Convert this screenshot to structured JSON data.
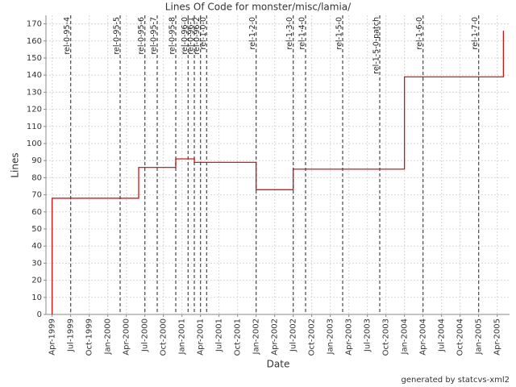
{
  "chart_data": {
    "type": "line",
    "title": "Lines Of Code for monster/misc/lamia/",
    "x_label": "Date",
    "y_label": "Lines",
    "footer": "generated by statcvs-xml2",
    "step": true,
    "grid": true,
    "x": [
      "Apr-1999",
      "Jun-2000",
      "Dec-2000",
      "Mar-2001",
      "Jan-2002",
      "Jul-2002",
      "Jan-2004",
      "May-2005"
    ],
    "series": [
      {
        "color": "#cc0000",
        "values": [
          68,
          86,
          91,
          89,
          73,
          85,
          139,
          166
        ]
      }
    ],
    "markers": [
      {
        "x": "Jul-1999",
        "label": "rel-0-95-4"
      },
      {
        "x": "Mar-2000",
        "label": "rel-0-95-5"
      },
      {
        "x": "Jul-2000",
        "label": "rel-0-95-6"
      },
      {
        "x": "Sep-2000",
        "label": "rel-0-95-7"
      },
      {
        "x": "Dec-2000",
        "label": "rel-0-95-8"
      },
      {
        "x": "Feb-2001",
        "label": "rel-0-96-0"
      },
      {
        "x": "Mar-2001",
        "label": "rel-0-96-1"
      },
      {
        "x": "Apr-2001",
        "label": "rel-0-96-2"
      },
      {
        "x": "May-2001",
        "label": "rel-1-0-0"
      },
      {
        "x": "Jan-2002",
        "label": "rel-1-2-0"
      },
      {
        "x": "Jul-2002",
        "label": "rel-1-3-0"
      },
      {
        "x": "Sep-2002",
        "label": "rel-1-4-0"
      },
      {
        "x": "Mar-2003",
        "label": "rel-1-5-0"
      },
      {
        "x": "Sep-2003",
        "label": "rel-1-5-0-patch"
      },
      {
        "x": "Apr-2004",
        "label": "rel-1-6-0"
      },
      {
        "x": "Jan-2005",
        "label": "rel-1-7-0"
      }
    ],
    "marker_color": "#555555",
    "xlim": [
      "Mar-1999",
      "Jun-2005"
    ],
    "xticks": [
      "Apr-1999",
      "Jul-1999",
      "Oct-1999",
      "Jan-2000",
      "Apr-2000",
      "Jul-2000",
      "Oct-2000",
      "Jan-2001",
      "Apr-2001",
      "Jul-2001",
      "Oct-2001",
      "Jan-2002",
      "Apr-2002",
      "Jul-2002",
      "Oct-2002",
      "Jan-2003",
      "Apr-2003",
      "Jul-2003",
      "Oct-2003",
      "Jan-2004",
      "Apr-2004",
      "Jul-2004",
      "Oct-2004",
      "Jan-2005",
      "Apr-2005"
    ],
    "ylim": [
      0,
      175
    ],
    "yticks": [
      0,
      10,
      20,
      30,
      40,
      50,
      60,
      70,
      80,
      90,
      100,
      110,
      120,
      130,
      140,
      150,
      160,
      170
    ]
  }
}
